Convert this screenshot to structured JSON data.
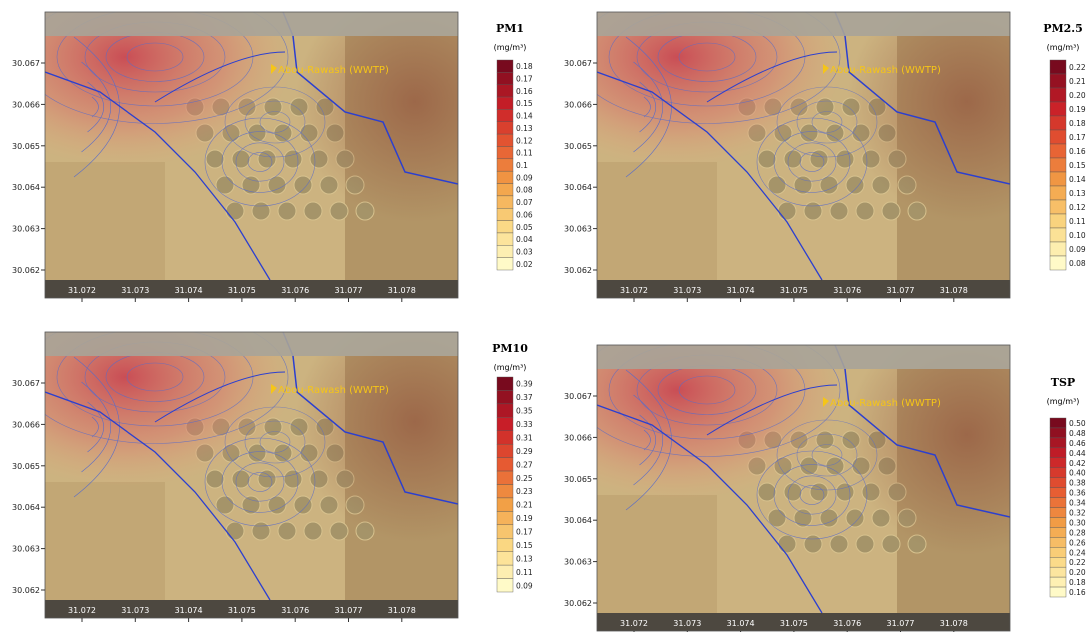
{
  "place_label": "Abou-Rawash (WWTP)",
  "y_labels": [
    "30.067",
    "30.066",
    "30.065",
    "30.064",
    "30.063",
    "30.062"
  ],
  "x_labels": [
    "31.072",
    "31.073",
    "31.074",
    "31.075",
    "31.076",
    "31.077",
    "31.078"
  ],
  "panels": [
    {
      "title": "PM1",
      "unit": "(mg/m³)",
      "legend": [
        "0.18",
        "0.17",
        "0.16",
        "0.15",
        "0.14",
        "0.13",
        "0.12",
        "0.11",
        "0.1",
        "0.09",
        "0.08",
        "0.07",
        "0.06",
        "0.05",
        "0.04",
        "0.03",
        "0.02"
      ]
    },
    {
      "title": "PM2.5",
      "unit": "(mg/m³)",
      "legend": [
        "0.22",
        "0.21",
        "0.20",
        "0.19",
        "0.18",
        "0.17",
        "0.16",
        "0.15",
        "0.14",
        "0.13",
        "0.12",
        "0.11",
        "0.10",
        "0.09",
        "0.08"
      ]
    },
    {
      "title": "PM10",
      "unit": "(mg/m³)",
      "legend": [
        "0.39",
        "0.37",
        "0.35",
        "0.33",
        "0.31",
        "0.29",
        "0.27",
        "0.25",
        "0.23",
        "0.21",
        "0.19",
        "0.17",
        "0.15",
        "0.13",
        "0.11",
        "0.09"
      ]
    },
    {
      "title": "TSP",
      "unit": "(mg/m³)",
      "legend": [
        "0.50",
        "0.48",
        "0.46",
        "0.44",
        "0.42",
        "0.40",
        "0.38",
        "0.36",
        "0.34",
        "0.32",
        "0.30",
        "0.28",
        "0.26",
        "0.24",
        "0.22",
        "0.20",
        "0.18",
        "0.16"
      ]
    }
  ]
}
